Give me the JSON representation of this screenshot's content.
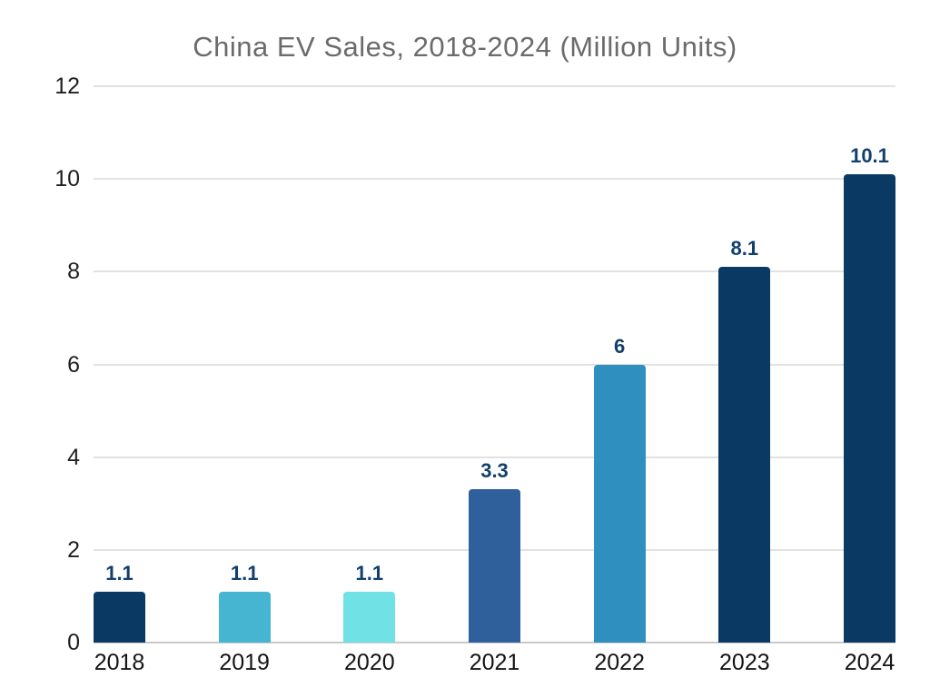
{
  "chart_data": {
    "type": "bar",
    "title": "China EV Sales, 2018-2024 (Million Units)",
    "categories": [
      "2018",
      "2019",
      "2020",
      "2021",
      "2022",
      "2023",
      "2024"
    ],
    "values": [
      1.1,
      1.1,
      1.1,
      3.3,
      6,
      8.1,
      10.1
    ],
    "value_labels": [
      "1.1",
      "1.1",
      "1.1",
      "3.3",
      "6",
      "8.1",
      "10.1"
    ],
    "bar_colors": [
      "#0a3a63",
      "#46b5d2",
      "#70e2e6",
      "#30609c",
      "#2f8fbf",
      "#0a3a63",
      "#0a3a63"
    ],
    "yticks": [
      0,
      2,
      4,
      6,
      8,
      10,
      12
    ],
    "ylim": [
      0,
      12
    ],
    "xlabel": "",
    "ylabel": "",
    "grid": "horizontal",
    "legend": "none",
    "colors": {
      "title_text": "#6b6b6b",
      "axis_text": "#1e1e1e",
      "value_label_text": "#123f6d",
      "gridline": "#e2e2e2",
      "baseline": "#c9c9c9",
      "background": "#ffffff"
    }
  }
}
